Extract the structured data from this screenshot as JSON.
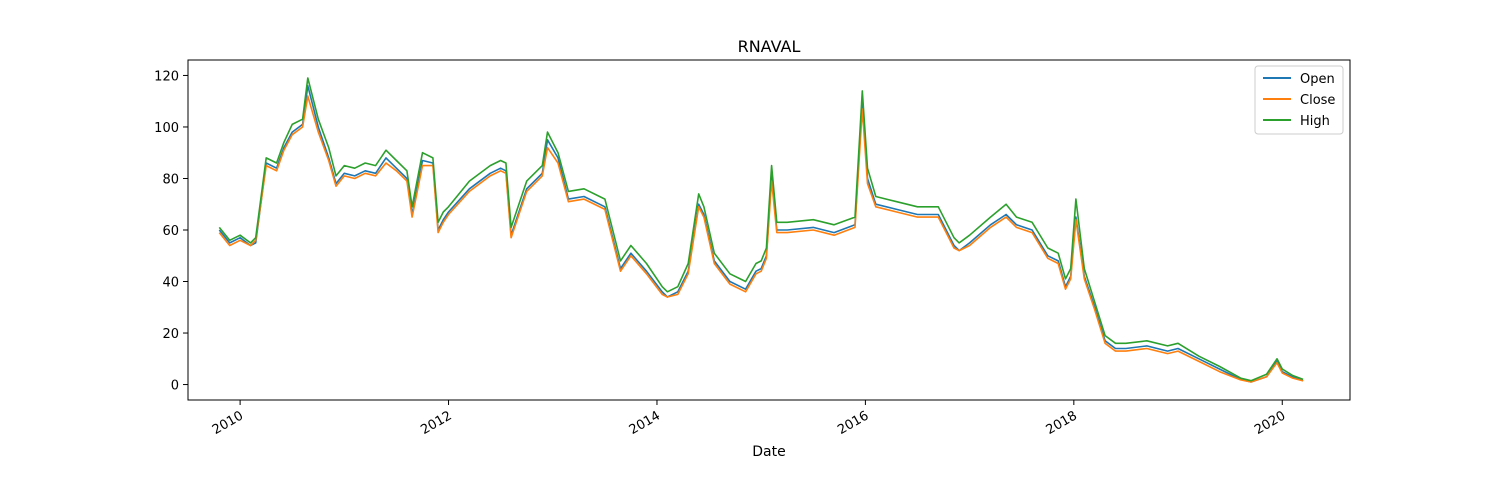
{
  "chart_data": {
    "type": "line",
    "title": "RNAVAL",
    "xlabel": "Date",
    "ylabel": "",
    "xlim": [
      2009.5,
      2020.65
    ],
    "ylim": [
      -6,
      126
    ],
    "x_ticks": [
      2010,
      2012,
      2014,
      2016,
      2018,
      2020
    ],
    "x_tick_labels": [
      "2010",
      "2012",
      "2014",
      "2016",
      "2018",
      "2020"
    ],
    "y_ticks": [
      0,
      20,
      40,
      60,
      80,
      100,
      120
    ],
    "y_tick_labels": [
      "0",
      "20",
      "40",
      "60",
      "80",
      "100",
      "120"
    ],
    "grid": false,
    "legend_position": "top-right",
    "x": [
      2009.8,
      2009.9,
      2010.0,
      2010.1,
      2010.15,
      2010.25,
      2010.35,
      2010.42,
      2010.5,
      2010.6,
      2010.65,
      2010.75,
      2010.85,
      2010.92,
      2011.0,
      2011.1,
      2011.2,
      2011.3,
      2011.4,
      2011.5,
      2011.6,
      2011.65,
      2011.75,
      2011.85,
      2011.9,
      2011.95,
      2012.0,
      2012.2,
      2012.4,
      2012.5,
      2012.55,
      2012.6,
      2012.75,
      2012.9,
      2012.95,
      2013.05,
      2013.15,
      2013.3,
      2013.5,
      2013.65,
      2013.75,
      2013.9,
      2014.05,
      2014.1,
      2014.2,
      2014.3,
      2014.4,
      2014.45,
      2014.55,
      2014.7,
      2014.85,
      2014.95,
      2015.0,
      2015.05,
      2015.1,
      2015.15,
      2015.25,
      2015.5,
      2015.7,
      2015.9,
      2015.97,
      2016.02,
      2016.1,
      2016.3,
      2016.5,
      2016.7,
      2016.85,
      2016.9,
      2017.0,
      2017.2,
      2017.35,
      2017.45,
      2017.6,
      2017.75,
      2017.85,
      2017.92,
      2017.97,
      2018.02,
      2018.1,
      2018.2,
      2018.3,
      2018.4,
      2018.5,
      2018.7,
      2018.9,
      2019.0,
      2019.2,
      2019.4,
      2019.6,
      2019.7,
      2019.85,
      2019.95,
      2020.0,
      2020.1,
      2020.2
    ],
    "series": [
      {
        "name": "Open",
        "color": "#1f77b4",
        "values": [
          60,
          55,
          57,
          54,
          55,
          86,
          84,
          92,
          98,
          101,
          116,
          100,
          88,
          78,
          82,
          81,
          83,
          82,
          88,
          84,
          80,
          66,
          87,
          86,
          60,
          64,
          67,
          76,
          82,
          84,
          83,
          58,
          76,
          82,
          95,
          88,
          72,
          73,
          69,
          45,
          51,
          44,
          36,
          34,
          36,
          44,
          70,
          66,
          48,
          40,
          37,
          44,
          45,
          50,
          81,
          60,
          60,
          61,
          59,
          62,
          110,
          80,
          70,
          68,
          66,
          66,
          54,
          52,
          55,
          62,
          66,
          62,
          60,
          50,
          48,
          38,
          42,
          65,
          42,
          30,
          17,
          14,
          14,
          15,
          13,
          14,
          10,
          6,
          2,
          1,
          3,
          9,
          5,
          3,
          1.5
        ]
      },
      {
        "name": "Close",
        "color": "#ff7f0e",
        "values": [
          59,
          54,
          56,
          54,
          56,
          85,
          83,
          91,
          97,
          100,
          112,
          98,
          87,
          77,
          81,
          80,
          82,
          81,
          86,
          83,
          79,
          65,
          85,
          85,
          59,
          63,
          66,
          75,
          81,
          83,
          82,
          57,
          75,
          81,
          92,
          86,
          71,
          72,
          68,
          44,
          50,
          43,
          35,
          34,
          35,
          43,
          69,
          65,
          47,
          39,
          36,
          43,
          44,
          49,
          79,
          59,
          59,
          60,
          58,
          61,
          107,
          78,
          69,
          67,
          65,
          65,
          53,
          52,
          54,
          61,
          65,
          61,
          59,
          49,
          47,
          37,
          41,
          64,
          41,
          29,
          16,
          13,
          13,
          14,
          12,
          13,
          9,
          5,
          1.8,
          1,
          3,
          8.5,
          4.5,
          2.5,
          1.4
        ]
      },
      {
        "name": "High",
        "color": "#2ca02c",
        "values": [
          61,
          56,
          58,
          55,
          57,
          88,
          86,
          94,
          101,
          103,
          119,
          103,
          92,
          81,
          85,
          84,
          86,
          85,
          91,
          87,
          83,
          69,
          90,
          88,
          63,
          67,
          69,
          79,
          85,
          87,
          86,
          61,
          79,
          85,
          98,
          90,
          75,
          76,
          72,
          48,
          54,
          47,
          38,
          36,
          38,
          47,
          74,
          69,
          51,
          43,
          40,
          47,
          48,
          53,
          85,
          63,
          63,
          64,
          62,
          65,
          114,
          84,
          73,
          71,
          69,
          69,
          57,
          55,
          58,
          65,
          70,
          65,
          63,
          53,
          51,
          41,
          45,
          72,
          45,
          32,
          19,
          16,
          16,
          17,
          15,
          16,
          11,
          7,
          2.5,
          1.5,
          4,
          10,
          6,
          3.5,
          2
        ]
      }
    ]
  }
}
